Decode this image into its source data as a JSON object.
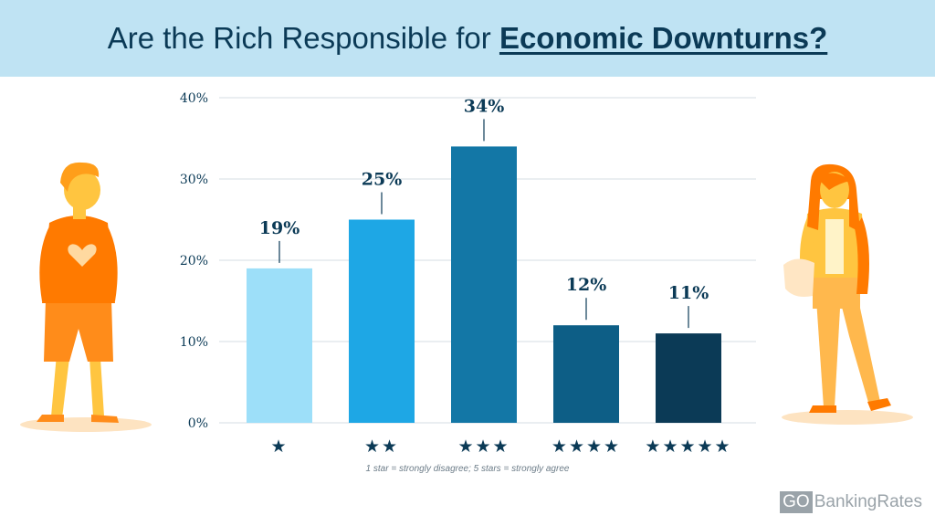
{
  "header": {
    "title_prefix": "Are the Rich Responsible for ",
    "title_emphasis": "Economic Downturns?"
  },
  "chart_data": {
    "type": "bar",
    "title": "Are the Rich Responsible for Economic Downturns?",
    "categories": [
      "★",
      "★★",
      "★★★",
      "★★★★",
      "★★★★★"
    ],
    "values": [
      19,
      25,
      34,
      12,
      11
    ],
    "data_labels": [
      "19%",
      "25%",
      "34%",
      "12%",
      "11%"
    ],
    "bar_colors": [
      "#9ddff9",
      "#1ea7e5",
      "#1377a6",
      "#0d5e86",
      "#0b3a56"
    ],
    "yticks": [
      0,
      10,
      20,
      30,
      40
    ],
    "ytick_labels": [
      "0%",
      "10%",
      "20%",
      "30%",
      "40%"
    ],
    "ylim": [
      0,
      40
    ],
    "xlabel": "",
    "ylabel": "",
    "grid": true,
    "note": "1 star = strongly disagree; 5 stars = strongly agree"
  },
  "branding": {
    "logo_go": "GO",
    "logo_rest": "BankingRates"
  },
  "colors": {
    "header_bg": "#bfe3f3",
    "text_dark": "#0b3a56",
    "orange": "#ff7a00",
    "gold": "#ffb84d"
  }
}
